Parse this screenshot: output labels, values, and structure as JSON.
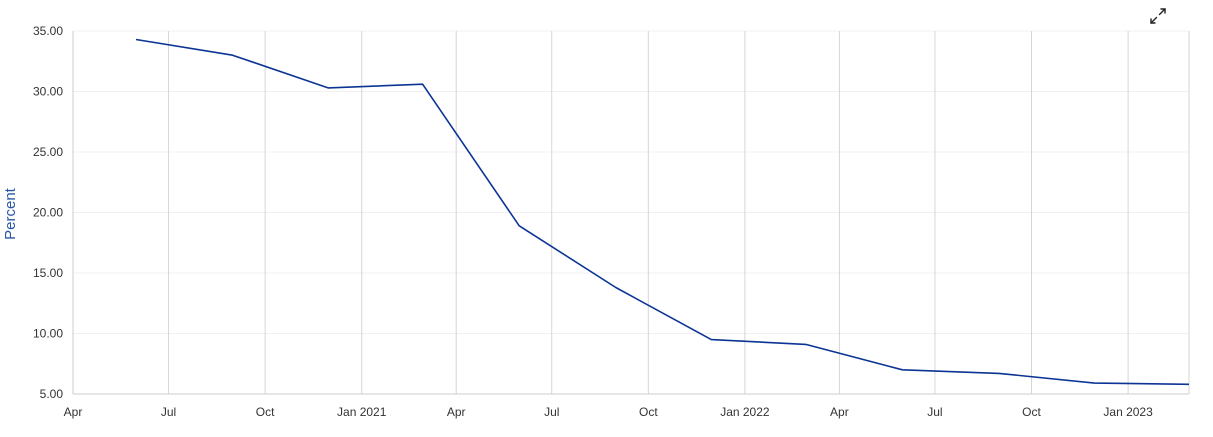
{
  "chart_data": {
    "type": "line",
    "ylabel": "Percent",
    "ylim": [
      5,
      35
    ],
    "yticks": [
      "5.00",
      "10.00",
      "15.00",
      "20.00",
      "25.00",
      "30.00",
      "35.00"
    ],
    "ytick_values": [
      5,
      10,
      15,
      20,
      25,
      30,
      35
    ],
    "xlim": [
      "2020-04-01",
      "2023-02-28"
    ],
    "xticks": [
      {
        "date": "2020-04-01",
        "label": "Apr"
      },
      {
        "date": "2020-07-01",
        "label": "Jul"
      },
      {
        "date": "2020-10-01",
        "label": "Oct"
      },
      {
        "date": "2021-01-01",
        "label": "Jan 2021"
      },
      {
        "date": "2021-04-01",
        "label": "Apr"
      },
      {
        "date": "2021-07-01",
        "label": "Jul"
      },
      {
        "date": "2021-10-01",
        "label": "Oct"
      },
      {
        "date": "2022-01-01",
        "label": "Jan 2022"
      },
      {
        "date": "2022-04-01",
        "label": "Apr"
      },
      {
        "date": "2022-07-01",
        "label": "Jul"
      },
      {
        "date": "2022-10-01",
        "label": "Oct"
      },
      {
        "date": "2023-01-01",
        "label": "Jan 2023"
      }
    ],
    "grid": true,
    "legend": "none",
    "series": [
      {
        "color": "#0b3494",
        "points": [
          {
            "x": "2020-05-31",
            "y": 34.3
          },
          {
            "x": "2020-08-31",
            "y": 33.0
          },
          {
            "x": "2020-11-30",
            "y": 30.3
          },
          {
            "x": "2021-02-28",
            "y": 30.6
          },
          {
            "x": "2021-05-31",
            "y": 18.9
          },
          {
            "x": "2021-08-31",
            "y": 13.8
          },
          {
            "x": "2021-11-30",
            "y": 9.5
          },
          {
            "x": "2022-02-28",
            "y": 9.1
          },
          {
            "x": "2022-05-31",
            "y": 7.0
          },
          {
            "x": "2022-08-31",
            "y": 6.7
          },
          {
            "x": "2022-11-30",
            "y": 5.9
          },
          {
            "x": "2023-02-28",
            "y": 5.8
          }
        ]
      }
    ]
  },
  "colors": {
    "axis_title": "#2857a4",
    "line": "#0b3494"
  },
  "toolbar": {
    "expand_icon": "expand-arrows-icon"
  }
}
